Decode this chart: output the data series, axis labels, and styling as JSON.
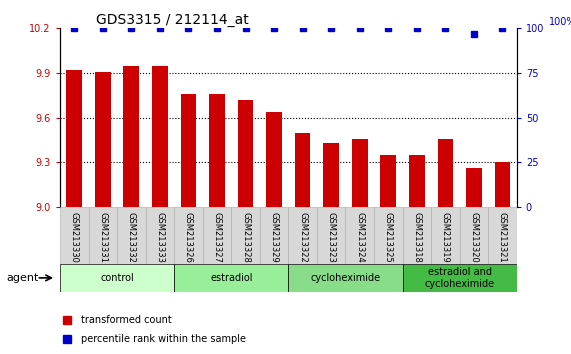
{
  "title": "GDS3315 / 212114_at",
  "samples": [
    "GSM213330",
    "GSM213331",
    "GSM213332",
    "GSM213333",
    "GSM213326",
    "GSM213327",
    "GSM213328",
    "GSM213329",
    "GSM213322",
    "GSM213323",
    "GSM213324",
    "GSM213325",
    "GSM213318",
    "GSM213319",
    "GSM213320",
    "GSM213321"
  ],
  "bar_values": [
    9.92,
    9.91,
    9.95,
    9.95,
    9.76,
    9.76,
    9.72,
    9.64,
    9.5,
    9.43,
    9.46,
    9.35,
    9.35,
    9.46,
    9.26,
    9.3
  ],
  "percentile_values": [
    100,
    100,
    100,
    100,
    100,
    100,
    100,
    100,
    100,
    100,
    100,
    100,
    100,
    100,
    97,
    100
  ],
  "bar_color": "#cc0000",
  "dot_color": "#0000cc",
  "ylim_left": [
    9.0,
    10.2
  ],
  "ylim_right": [
    0,
    100
  ],
  "yticks_left": [
    9.0,
    9.3,
    9.6,
    9.9,
    10.2
  ],
  "yticks_right": [
    0,
    25,
    50,
    75,
    100
  ],
  "groups": [
    {
      "label": "control",
      "start": 0,
      "end": 4,
      "color": "#ccffcc"
    },
    {
      "label": "estradiol",
      "start": 4,
      "end": 8,
      "color": "#99ee99"
    },
    {
      "label": "cycloheximide",
      "start": 8,
      "end": 12,
      "color": "#88dd88"
    },
    {
      "label": "estradiol and\ncycloheximide",
      "start": 12,
      "end": 16,
      "color": "#44bb44"
    }
  ],
  "agent_label": "agent",
  "legend_bar_label": "transformed count",
  "legend_dot_label": "percentile rank within the sample",
  "tick_label_color_left": "#cc0000",
  "tick_label_color_right": "#0000cc",
  "bar_width": 0.55,
  "dot_size": 5,
  "title_fontsize": 10,
  "tick_fontsize": 7,
  "sample_fontsize": 6,
  "group_fontsize": 7,
  "legend_fontsize": 7
}
